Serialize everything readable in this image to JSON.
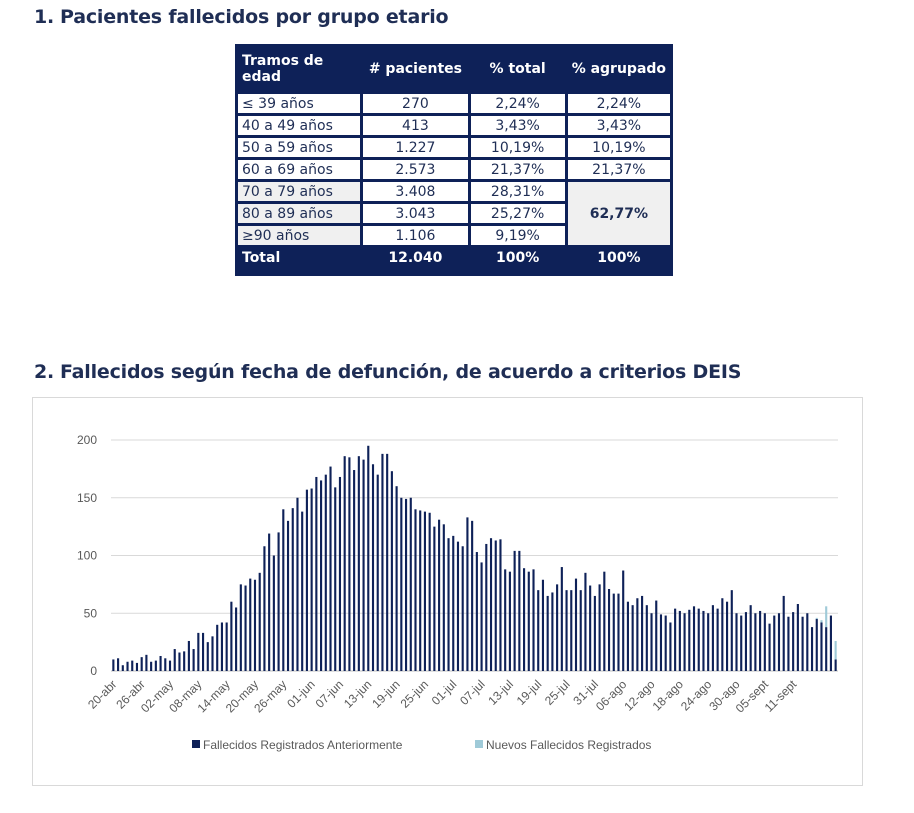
{
  "section1": {
    "number": "1.",
    "title": "Pacientes fallecidos por grupo etario"
  },
  "table": {
    "headers": [
      "Tramos de edad",
      "# pacientes",
      "% total",
      "% agrupado"
    ],
    "rows": [
      [
        "≤ 39 años",
        "270",
        "2,24%",
        "2,24%"
      ],
      [
        "40 a 49 años",
        "413",
        "3,43%",
        "3,43%"
      ],
      [
        "50 a 59 años",
        "1.227",
        "10,19%",
        "10,19%"
      ],
      [
        "60 a 69 años",
        "2.573",
        "21,37%",
        "21,37%"
      ],
      [
        "70 a 79 años",
        "3.408",
        "28,31%",
        ""
      ],
      [
        "80 a 89 años",
        "3.043",
        "25,27%",
        ""
      ],
      [
        "≥90 años",
        "1.106",
        "9,19%",
        ""
      ]
    ],
    "grouped_value": "62,77%",
    "total": [
      "Total",
      "12.040",
      "100%",
      "100%"
    ]
  },
  "section2": {
    "number": "2.",
    "title": "Fallecidos según fecha de defunción, de acuerdo a criterios DEIS"
  },
  "colors": {
    "previous": "#0e2158",
    "new": "#9fcad8",
    "grid": "#d9d9d9"
  },
  "chart_data": {
    "type": "bar",
    "stacked": true,
    "ylim": [
      0,
      200
    ],
    "yticks": [
      0,
      50,
      100,
      150,
      200
    ],
    "xtick_labels": [
      "20-abr",
      "26-abr",
      "02-may",
      "08-may",
      "14-may",
      "20-may",
      "26-may",
      "01-jun",
      "07-jun",
      "13-jun",
      "19-jun",
      "25-jun",
      "01-jul",
      "07-jul",
      "13-jul",
      "19-jul",
      "25-jul",
      "31-jul",
      "06-ago",
      "12-ago",
      "18-ago",
      "24-ago",
      "30-ago",
      "05-sept",
      "11-sept"
    ],
    "legend": [
      "Fallecidos Registrados Anteriormente",
      "Nuevos Fallecidos Registrados"
    ],
    "legend_position": "bottom",
    "grid": true,
    "series": [
      {
        "name": "Fallecidos Registrados Anteriormente",
        "values": [
          10,
          11,
          5,
          8,
          9,
          7,
          12,
          14,
          8,
          9,
          13,
          11,
          9,
          19,
          16,
          17,
          26,
          19,
          33,
          33,
          25,
          30,
          40,
          42,
          42,
          60,
          55,
          75,
          74,
          80,
          79,
          85,
          108,
          119,
          100,
          120,
          140,
          130,
          141,
          150,
          138,
          157,
          158,
          168,
          165,
          170,
          177,
          159,
          168,
          186,
          185,
          174,
          186,
          183,
          195,
          179,
          170,
          188,
          188,
          173,
          160,
          150,
          149,
          150,
          140,
          139,
          138,
          137,
          125,
          131,
          127,
          115,
          117,
          112,
          108,
          133,
          130,
          103,
          94,
          110,
          115,
          113,
          114,
          88,
          86,
          104,
          104,
          89,
          86,
          88,
          70,
          79,
          65,
          68,
          75,
          90,
          70,
          70,
          80,
          70,
          85,
          74,
          65,
          75,
          86,
          71,
          67,
          67,
          87,
          60,
          57,
          63,
          65,
          57,
          50,
          61,
          49,
          48,
          42,
          54,
          52,
          50,
          53,
          56,
          54,
          52,
          50,
          57,
          54,
          63,
          60,
          70,
          50,
          48,
          51,
          57,
          50,
          52,
          50,
          41,
          48,
          50,
          65,
          47,
          51,
          58,
          47,
          50,
          38,
          45,
          42,
          38,
          48,
          10
        ],
        "values_note": ""
      },
      {
        "name": "Nuevos Fallecidos Registrados",
        "values": [
          0,
          0,
          0,
          0,
          0,
          0,
          0,
          0,
          0,
          0,
          0,
          0,
          0,
          0,
          0,
          0,
          0,
          0,
          0,
          0,
          0,
          0,
          0,
          0,
          0,
          0,
          0,
          0,
          0,
          0,
          0,
          0,
          0,
          0,
          0,
          0,
          0,
          0,
          0,
          0,
          0,
          0,
          0,
          0,
          0,
          0,
          0,
          0,
          0,
          0,
          0,
          0,
          0,
          0,
          0,
          0,
          0,
          0,
          0,
          0,
          0,
          0,
          0,
          0,
          0,
          0,
          0,
          0,
          0,
          0,
          0,
          0,
          0,
          0,
          0,
          0,
          0,
          0,
          0,
          0,
          0,
          0,
          0,
          0,
          0,
          0,
          0,
          0,
          0,
          0,
          0,
          0,
          0,
          0,
          0,
          0,
          0,
          0,
          0,
          0,
          0,
          0,
          0,
          0,
          0,
          0,
          0,
          0,
          0,
          0,
          0,
          0,
          0,
          0,
          0,
          0,
          0,
          0,
          0,
          0,
          0,
          0,
          0,
          0,
          0,
          0,
          0,
          0,
          0,
          0,
          0,
          0,
          0,
          0,
          0,
          0,
          0,
          0,
          0,
          0,
          0,
          0,
          0,
          0,
          0,
          0,
          0,
          0,
          0,
          1,
          2,
          18,
          0,
          16
        ]
      }
    ]
  }
}
